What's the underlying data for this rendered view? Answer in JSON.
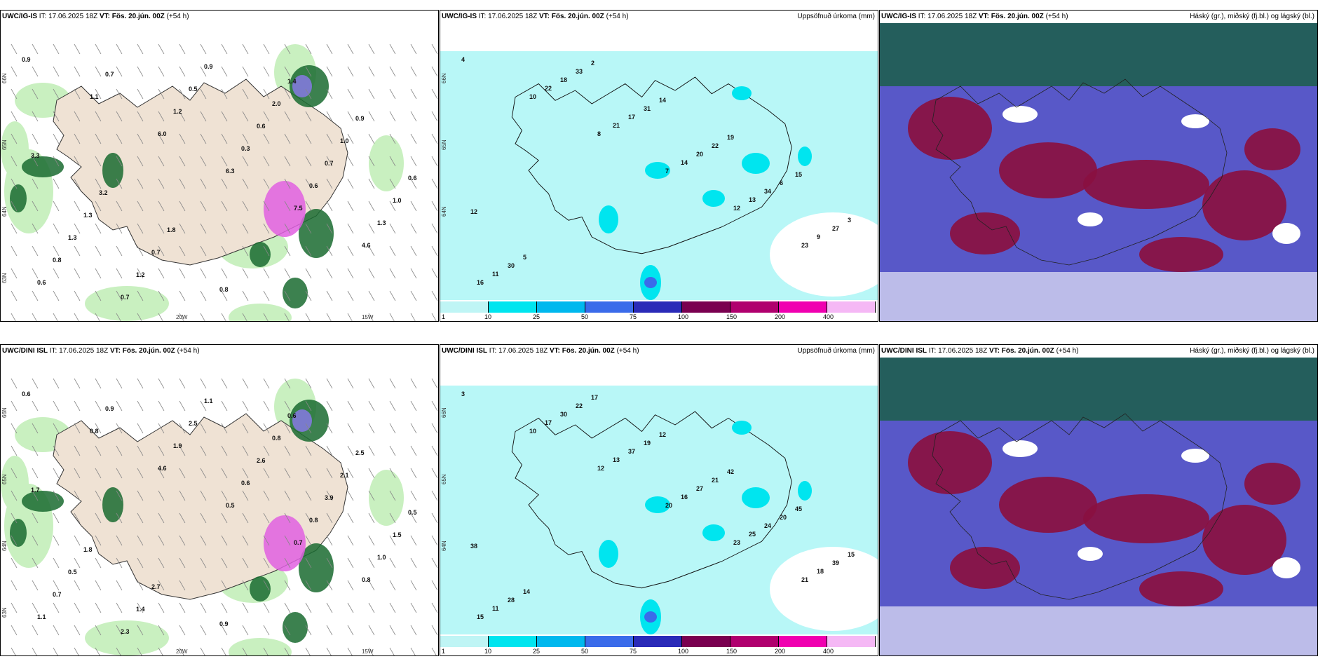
{
  "panels": [
    {
      "model": "UWC/IG-IS",
      "it_label": "IT:",
      "it_value": "17.06.2025 18Z",
      "vt_label": "VT:",
      "vt_value": "Fös. 20.jún. 00Z",
      "lead": "(+54 h)",
      "right_title": "",
      "kind": "wind",
      "values": [
        "0.9",
        "1.1",
        "6.0",
        "6.3",
        "7.5",
        "4.6",
        "0.6",
        "0.7",
        "1.2",
        "0.3",
        "0.6",
        "1.3",
        "0.8",
        "0.7",
        "0.5",
        "0.6",
        "0.7",
        "1.0",
        "1.3",
        "1.2",
        "0.9",
        "2.0",
        "1.0",
        "0.6",
        "1.3",
        "0.7",
        "0.8",
        "1.4",
        "0.9",
        "3.3",
        "3.2",
        "1.8"
      ],
      "lat_ticks": [
        "66N",
        "65N",
        "64N",
        "63N"
      ],
      "lon_ticks": [
        "20W",
        "15W"
      ]
    },
    {
      "model": "UWC/IG-IS",
      "it_label": "IT:",
      "it_value": "17.06.2025 18Z",
      "vt_label": "VT:",
      "vt_value": "Fös. 20.jún. 00Z",
      "lead": "(+54 h)",
      "right_title": "Uppsöfnuð úrkoma (mm)",
      "kind": "precip",
      "values": [
        "4",
        "10",
        "8",
        "7",
        "12",
        "23",
        "16",
        "22",
        "21",
        "14",
        "13",
        "9",
        "11",
        "18",
        "17",
        "20",
        "34",
        "27",
        "30",
        "33",
        "31",
        "22",
        "6",
        "3",
        "5",
        "2",
        "14",
        "19",
        "15",
        "12"
      ],
      "lat_ticks": [
        "66N",
        "65N",
        "64N"
      ],
      "lon_ticks": []
    },
    {
      "model": "UWC/IG-IS",
      "it_label": "IT:",
      "it_value": "17.06.2025 18Z",
      "vt_label": "VT:",
      "vt_value": "Fös. 20.jún. 00Z",
      "lead": "(+54 h)",
      "right_title": "Háský (gr.), miðský (fj.bl.) og lágský (bl.)",
      "kind": "cloud",
      "values": [],
      "lat_ticks": [],
      "lon_ticks": []
    },
    {
      "model": "UWC/DINI ISL",
      "it_label": "IT:",
      "it_value": "17.06.2025 18Z",
      "vt_label": "VT:",
      "vt_value": "Fös. 20.jún. 00Z",
      "lead": "(+54 h)",
      "right_title": "",
      "kind": "wind",
      "values": [
        "0.6",
        "0.8",
        "4.6",
        "0.5",
        "0.7",
        "0.8",
        "1.1",
        "0.9",
        "1.9",
        "0.6",
        "0.8",
        "1.0",
        "0.7",
        "2.3",
        "2.5",
        "2.6",
        "3.9",
        "1.5",
        "0.5",
        "1.4",
        "1.1",
        "0.8",
        "2.1",
        "0.5",
        "1.8",
        "2.7",
        "0.9",
        "0.6",
        "2.5",
        "1.7"
      ],
      "lat_ticks": [
        "66N",
        "65N",
        "64N",
        "63N"
      ],
      "lon_ticks": [
        "20W",
        "15W"
      ]
    },
    {
      "model": "UWC/DINI ISL",
      "it_label": "IT:",
      "it_value": "17.06.2025 18Z",
      "vt_label": "VT:",
      "vt_value": "Fös. 20.jún. 00Z",
      "lead": "(+54 h)",
      "right_title": "Uppsöfnuð úrkoma (mm)",
      "kind": "precip",
      "values": [
        "3",
        "10",
        "12",
        "20",
        "23",
        "21",
        "15",
        "17",
        "13",
        "16",
        "25",
        "18",
        "11",
        "30",
        "37",
        "27",
        "24",
        "39",
        "28",
        "22",
        "19",
        "21",
        "20",
        "15",
        "14",
        "17",
        "12",
        "42",
        "45",
        "38"
      ],
      "lat_ticks": [
        "66N",
        "65N",
        "64N"
      ],
      "lon_ticks": []
    },
    {
      "model": "UWC/DINI ISL",
      "it_label": "IT:",
      "it_value": "17.06.2025 18Z",
      "vt_label": "VT:",
      "vt_value": "Fös. 20.jún. 00Z",
      "lead": "(+54 h)",
      "right_title": "Háský (gr.), miðský (fj.bl.) og lágský (bl.)",
      "kind": "cloud",
      "values": [],
      "lat_ticks": [],
      "lon_ticks": []
    }
  ],
  "colorbar": {
    "labels": [
      "1",
      "10",
      "25",
      "50",
      "75",
      "100",
      "150",
      "200",
      "400"
    ],
    "colors": [
      "#bff5f5",
      "#00e5ef",
      "#00b8ee",
      "#3a6bea",
      "#2a2ab8",
      "#7a0050",
      "#b0006e",
      "#f000b0",
      "#f5b8f5"
    ]
  },
  "colors": {
    "land": "#efe2d4",
    "precip_bg": "#b8f7f7",
    "cloud_high": "#1f5f50",
    "cloud_mid": "#5858c8",
    "cloud_low": "#8a1040",
    "green_light": "#c9f0c0",
    "green_dark": "#1a6b30",
    "magenta": "#e060e0"
  }
}
